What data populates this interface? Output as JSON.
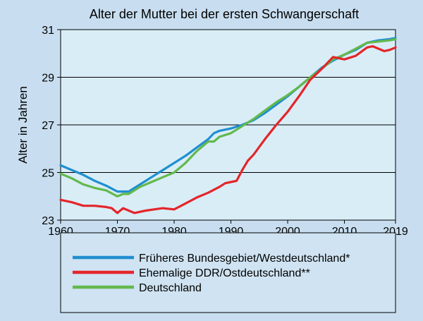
{
  "chart_data": {
    "type": "line",
    "title": "Alter der Mutter bei der ersten Schwangerschaft",
    "xlabel": "",
    "ylabel": "Alter in Jahren",
    "xlim": [
      1960,
      2019
    ],
    "ylim": [
      23,
      31
    ],
    "x_ticks": [
      1960,
      1970,
      1980,
      1990,
      2000,
      2010,
      2019
    ],
    "y_ticks": [
      23,
      25,
      27,
      29,
      31
    ],
    "grid": "horizontal",
    "legend_position": "below",
    "series": [
      {
        "name": "Früheres Bundesgebiet/Westdeutschland*",
        "color": "#1f8fd0",
        "points": [
          [
            1960,
            25.3
          ],
          [
            1962,
            25.1
          ],
          [
            1964,
            24.9
          ],
          [
            1966,
            24.65
          ],
          [
            1968,
            24.45
          ],
          [
            1970,
            24.2
          ],
          [
            1972,
            24.2
          ],
          [
            1974,
            24.5
          ],
          [
            1976,
            24.8
          ],
          [
            1978,
            25.1
          ],
          [
            1980,
            25.4
          ],
          [
            1982,
            25.7
          ],
          [
            1984,
            26.05
          ],
          [
            1986,
            26.4
          ],
          [
            1987,
            26.65
          ],
          [
            1988,
            26.75
          ],
          [
            1990,
            26.85
          ],
          [
            1992,
            27.0
          ],
          [
            1994,
            27.2
          ],
          [
            1996,
            27.5
          ],
          [
            1998,
            27.85
          ],
          [
            2000,
            28.2
          ],
          [
            2002,
            28.6
          ],
          [
            2004,
            29.0
          ],
          [
            2006,
            29.4
          ],
          [
            2008,
            29.7
          ],
          [
            2010,
            29.95
          ],
          [
            2012,
            30.15
          ],
          [
            2014,
            30.45
          ],
          [
            2016,
            30.55
          ],
          [
            2018,
            30.6
          ],
          [
            2019,
            30.65
          ]
        ]
      },
      {
        "name": "Ehemalige DDR/Ostdeutschland**",
        "color": "#e3262a",
        "points": [
          [
            1960,
            23.85
          ],
          [
            1962,
            23.75
          ],
          [
            1964,
            23.6
          ],
          [
            1966,
            23.6
          ],
          [
            1968,
            23.55
          ],
          [
            1969,
            23.5
          ],
          [
            1970,
            23.3
          ],
          [
            1971,
            23.5
          ],
          [
            1972,
            23.4
          ],
          [
            1973,
            23.3
          ],
          [
            1975,
            23.4
          ],
          [
            1978,
            23.5
          ],
          [
            1980,
            23.45
          ],
          [
            1982,
            23.7
          ],
          [
            1984,
            23.95
          ],
          [
            1986,
            24.15
          ],
          [
            1988,
            24.4
          ],
          [
            1989,
            24.55
          ],
          [
            1990,
            24.6
          ],
          [
            1991,
            24.65
          ],
          [
            1992,
            25.1
          ],
          [
            1993,
            25.5
          ],
          [
            1994,
            25.75
          ],
          [
            1996,
            26.4
          ],
          [
            1998,
            27.0
          ],
          [
            2000,
            27.55
          ],
          [
            2002,
            28.2
          ],
          [
            2004,
            28.9
          ],
          [
            2006,
            29.35
          ],
          [
            2008,
            29.85
          ],
          [
            2010,
            29.75
          ],
          [
            2012,
            29.9
          ],
          [
            2014,
            30.25
          ],
          [
            2015,
            30.3
          ],
          [
            2016,
            30.2
          ],
          [
            2017,
            30.1
          ],
          [
            2018,
            30.15
          ],
          [
            2019,
            30.25
          ]
        ]
      },
      {
        "name": "Deutschland",
        "color": "#63b94d",
        "points": [
          [
            1960,
            24.95
          ],
          [
            1962,
            24.75
          ],
          [
            1964,
            24.5
          ],
          [
            1966,
            24.35
          ],
          [
            1968,
            24.25
          ],
          [
            1970,
            24.0
          ],
          [
            1971,
            24.1
          ],
          [
            1972,
            24.1
          ],
          [
            1974,
            24.4
          ],
          [
            1976,
            24.6
          ],
          [
            1978,
            24.8
          ],
          [
            1980,
            25.0
          ],
          [
            1982,
            25.4
          ],
          [
            1984,
            25.9
          ],
          [
            1986,
            26.3
          ],
          [
            1987,
            26.3
          ],
          [
            1988,
            26.5
          ],
          [
            1990,
            26.65
          ],
          [
            1992,
            26.95
          ],
          [
            1994,
            27.25
          ],
          [
            1996,
            27.6
          ],
          [
            1998,
            27.95
          ],
          [
            2000,
            28.25
          ],
          [
            2002,
            28.6
          ],
          [
            2004,
            29.0
          ],
          [
            2006,
            29.35
          ],
          [
            2008,
            29.75
          ],
          [
            2010,
            29.95
          ],
          [
            2012,
            30.2
          ],
          [
            2014,
            30.45
          ],
          [
            2016,
            30.5
          ],
          [
            2018,
            30.55
          ],
          [
            2019,
            30.6
          ]
        ]
      }
    ]
  },
  "colors": {
    "page_background": "#c8def0",
    "plot_background": "#d9edf7",
    "legend_background": "#cfe3f2",
    "axis": "#000000"
  }
}
